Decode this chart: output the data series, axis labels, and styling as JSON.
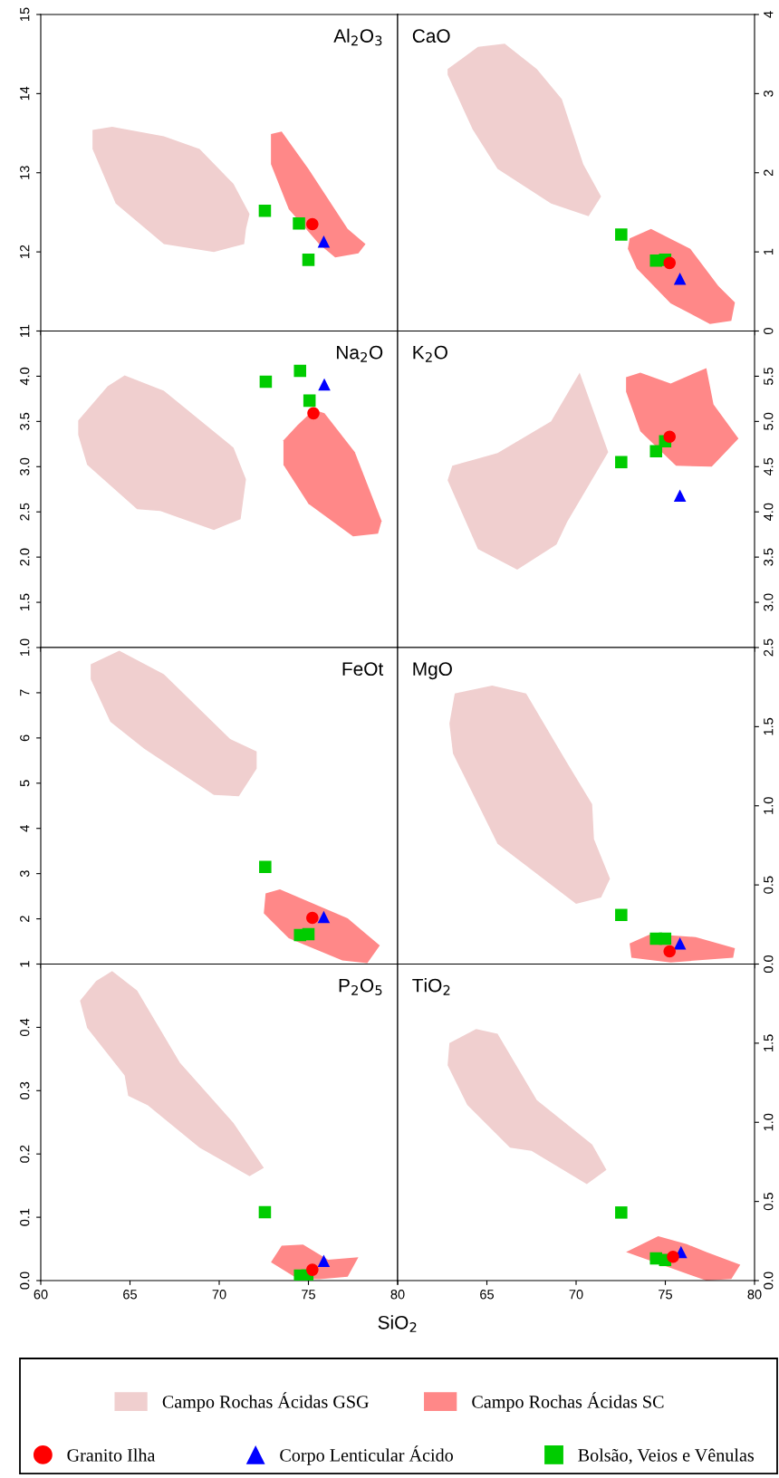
{
  "chart_data": [
    {
      "type": "scatter",
      "title": "Al$_{2}$O$_{3}$",
      "xlim": [
        60,
        80
      ],
      "xticks": [
        60,
        65,
        70,
        75,
        80
      ],
      "ylim": [
        11,
        15
      ],
      "yticks": [
        11,
        12,
        13,
        14,
        15
      ],
      "tick_labels": "y",
      "grid": false,
      "legend": "bottom",
      "series": [
        {
          "name": "Campo Rochas Ácidas GSG",
          "type": "area",
          "color": "#f0cfcf",
          "x": [
            62.9,
            64.0,
            66.9,
            68.9,
            70.8,
            71.7,
            71.5,
            71.4,
            69.7,
            66.9,
            64.2,
            62.9
          ],
          "values": [
            13.54,
            13.58,
            13.46,
            13.3,
            12.86,
            12.48,
            12.29,
            12.1,
            12.0,
            12.1,
            12.61,
            13.3
          ]
        },
        {
          "name": "Campo Rochas Ácidas SC",
          "type": "area",
          "color": "#ff8888",
          "x": [
            72.9,
            73.5,
            75.0,
            77.2,
            78.2,
            77.8,
            76.5,
            75.6,
            73.9,
            72.9
          ],
          "values": [
            13.49,
            13.52,
            13.05,
            12.29,
            12.1,
            11.98,
            11.93,
            12.1,
            12.54,
            13.11
          ]
        },
        {
          "name": "Granito Ilha",
          "marker": "circle",
          "color": "#ff0000",
          "x": [
            75.22
          ],
          "values": [
            12.35
          ]
        },
        {
          "name": "Corpo Lenticular Ácido",
          "marker": "triangle",
          "color": "#0000ff",
          "x": [
            75.86
          ],
          "values": [
            12.13
          ]
        },
        {
          "name": "Bolsão, Veios e Vênulas",
          "marker": "square",
          "color": "#00cc00",
          "x": [
            72.56,
            74.47,
            75.0
          ],
          "values": [
            12.52,
            12.36,
            11.9
          ]
        }
      ]
    },
    {
      "type": "scatter",
      "title": "CaO",
      "xlim": [
        60,
        80
      ],
      "xticks": [
        60,
        65,
        70,
        75,
        80
      ],
      "ylim": [
        0,
        4
      ],
      "yticks": [
        0,
        1,
        2,
        3,
        4
      ],
      "tick_labels": "y",
      "grid": false,
      "series": [
        {
          "type": "area",
          "color": "#f0cfcf",
          "x": [
            62.8,
            64.5,
            66.0,
            67.8,
            69.2,
            70.4,
            71.4,
            70.7,
            68.6,
            65.6,
            64.2,
            62.8
          ],
          "values": [
            3.31,
            3.59,
            3.63,
            3.31,
            2.93,
            2.11,
            1.7,
            1.45,
            1.61,
            2.05,
            2.55,
            3.24
          ]
        },
        {
          "type": "area",
          "color": "#ff8888",
          "x": [
            73.0,
            74.2,
            76.4,
            77.97,
            78.9,
            78.7,
            77.5,
            75.3,
            73.4,
            72.9
          ],
          "values": [
            1.17,
            1.29,
            1.04,
            0.57,
            0.36,
            0.13,
            0.09,
            0.35,
            0.79,
            1.04
          ]
        },
        {
          "marker": "circle",
          "color": "#ff0000",
          "x": [
            75.24
          ],
          "values": [
            0.86
          ]
        },
        {
          "marker": "triangle",
          "color": "#0000ff",
          "x": [
            75.82
          ],
          "values": [
            0.66
          ]
        },
        {
          "marker": "square",
          "color": "#00cc00",
          "x": [
            72.53,
            74.48,
            74.99
          ],
          "values": [
            1.22,
            0.89,
            0.9
          ]
        }
      ]
    },
    {
      "type": "scatter",
      "title": "Na$_{2}$O",
      "xlim": [
        60,
        80
      ],
      "xticks": [
        60,
        65,
        70,
        75,
        80
      ],
      "ylim": [
        1.0,
        4.5
      ],
      "yticks": [
        {
          "value": 1.0,
          "label": "1.0"
        },
        {
          "value": 1.5,
          "label": "1.5"
        },
        {
          "value": 2.0,
          "label": "2.0"
        },
        {
          "value": 2.5,
          "label": "2.5"
        },
        {
          "value": 3.0,
          "label": "3.0"
        },
        {
          "value": 3.5,
          "label": "3.5"
        },
        {
          "value": 4.0,
          "label": "4.0"
        }
      ],
      "tick_labels": "y",
      "grid": false,
      "series": [
        {
          "type": "area",
          "color": "#f0cfcf",
          "x": [
            62.1,
            63.75,
            64.7,
            66.9,
            70.8,
            71.5,
            71.2,
            69.7,
            66.7,
            65.4,
            62.6,
            62.1
          ],
          "values": [
            3.51,
            3.89,
            4.01,
            3.84,
            3.21,
            2.86,
            2.42,
            2.3,
            2.51,
            2.53,
            3.02,
            3.35
          ]
        },
        {
          "type": "area",
          "color": "#ff8888",
          "x": [
            73.6,
            74.4,
            75.3,
            75.9,
            77.6,
            79.1,
            78.9,
            77.5,
            75.0,
            73.6
          ],
          "values": [
            3.29,
            3.46,
            3.63,
            3.59,
            3.16,
            2.4,
            2.26,
            2.23,
            2.59,
            3.02
          ]
        },
        {
          "marker": "circle",
          "color": "#ff0000",
          "x": [
            75.28
          ],
          "values": [
            3.59
          ]
        },
        {
          "marker": "triangle",
          "color": "#0000ff",
          "x": [
            75.89
          ],
          "values": [
            3.91
          ]
        },
        {
          "marker": "square",
          "color": "#00cc00",
          "x": [
            72.61,
            74.53,
            75.06
          ],
          "values": [
            3.94,
            4.06,
            3.73
          ]
        }
      ]
    },
    {
      "type": "scatter",
      "title": "K$_{2}$O",
      "xlim": [
        60,
        80
      ],
      "xticks": [
        60,
        65,
        70,
        75,
        80
      ],
      "ylim": [
        2.5,
        6.0
      ],
      "yticks": [
        {
          "value": 2.5,
          "label": "2.5"
        },
        {
          "value": 3.0,
          "label": "3.0"
        },
        {
          "value": 3.5,
          "label": "3.5"
        },
        {
          "value": 4.0,
          "label": "4.0"
        },
        {
          "value": 4.5,
          "label": "4.5"
        },
        {
          "value": 5.0,
          "label": "5.0"
        },
        {
          "value": 5.5,
          "label": "5.5"
        }
      ],
      "tick_labels": "y",
      "grid": false,
      "series": [
        {
          "type": "area",
          "color": "#f0cfcf",
          "x": [
            63.06,
            65.6,
            68.6,
            70.2,
            71.8,
            69.5,
            68.9,
            66.7,
            64.5,
            62.8
          ],
          "values": [
            4.51,
            4.65,
            5.0,
            5.54,
            4.66,
            3.89,
            3.64,
            3.36,
            3.59,
            4.35
          ]
        },
        {
          "type": "area",
          "color": "#ff8888",
          "x": [
            72.8,
            73.6,
            75.3,
            77.3,
            77.7,
            79.1,
            77.6,
            75.6,
            73.6,
            72.8
          ],
          "values": [
            5.49,
            5.54,
            5.42,
            5.59,
            5.19,
            4.81,
            4.5,
            4.51,
            4.89,
            5.33
          ]
        },
        {
          "marker": "circle",
          "color": "#ff0000",
          "x": [
            75.24
          ],
          "values": [
            4.83
          ]
        },
        {
          "marker": "triangle",
          "color": "#0000ff",
          "x": [
            75.82
          ],
          "values": [
            4.18
          ]
        },
        {
          "marker": "square",
          "color": "#00cc00",
          "x": [
            72.53,
            74.48,
            74.99
          ],
          "values": [
            4.55,
            4.67,
            4.78
          ]
        }
      ]
    },
    {
      "type": "scatter",
      "title": "FeOt",
      "xlim": [
        60,
        80
      ],
      "xticks": [
        60,
        65,
        70,
        75,
        80
      ],
      "ylim": [
        1,
        8
      ],
      "yticks": [
        1,
        2,
        3,
        4,
        5,
        6,
        7
      ],
      "tick_labels": "y",
      "grid": false,
      "series": [
        {
          "type": "area",
          "color": "#f0cfcf",
          "x": [
            62.8,
            64.4,
            66.9,
            70.6,
            72.1,
            72.1,
            71.1,
            69.7,
            65.8,
            63.9,
            62.8
          ],
          "values": [
            7.63,
            7.93,
            7.41,
            5.98,
            5.7,
            5.32,
            4.71,
            4.74,
            5.76,
            6.36,
            7.3
          ]
        },
        {
          "type": "area",
          "color": "#ff8888",
          "x": [
            72.6,
            73.4,
            77.2,
            79.0,
            78.3,
            76.9,
            73.9,
            72.5
          ],
          "values": [
            2.56,
            2.65,
            2.01,
            1.41,
            1.02,
            1.08,
            1.57,
            2.12
          ]
        },
        {
          "marker": "circle",
          "color": "#ff0000",
          "x": [
            75.22
          ],
          "values": [
            2.02
          ]
        },
        {
          "marker": "triangle",
          "color": "#0000ff",
          "x": [
            75.86
          ],
          "values": [
            2.04
          ]
        },
        {
          "marker": "square",
          "color": "#00cc00",
          "x": [
            72.58,
            74.53,
            75.0
          ],
          "values": [
            3.15,
            1.64,
            1.66
          ]
        }
      ]
    },
    {
      "type": "scatter",
      "title": "MgO",
      "xlim": [
        60,
        80
      ],
      "xticks": [
        60,
        65,
        70,
        75,
        80
      ],
      "ylim": [
        0,
        2
      ],
      "yticks": [
        {
          "value": 0,
          "label": "0.0"
        },
        {
          "value": 0.5,
          "label": "0.5"
        },
        {
          "value": 1.0,
          "label": "1.0"
        },
        {
          "value": 1.5,
          "label": "1.5"
        }
      ],
      "tick_labels": "y",
      "grid": false,
      "series": [
        {
          "type": "area",
          "color": "#f0cfcf",
          "x": [
            63.2,
            65.3,
            67.2,
            69.5,
            70.9,
            71.0,
            71.9,
            71.4,
            70.0,
            65.6,
            63.1,
            62.9
          ],
          "values": [
            1.71,
            1.76,
            1.71,
            1.27,
            1.01,
            0.79,
            0.54,
            0.42,
            0.38,
            0.76,
            1.33,
            1.52
          ]
        },
        {
          "type": "area",
          "color": "#ff8888",
          "x": [
            73.0,
            74.2,
            76.7,
            78.9,
            78.8,
            75.3,
            73.1
          ],
          "values": [
            0.13,
            0.19,
            0.17,
            0.1,
            0.04,
            0.01,
            0.04
          ]
        },
        {
          "marker": "circle",
          "color": "#ff0000",
          "x": [
            75.24
          ],
          "values": [
            0.08
          ]
        },
        {
          "marker": "triangle",
          "color": "#0000ff",
          "x": [
            75.82
          ],
          "values": [
            0.13
          ]
        },
        {
          "marker": "square",
          "color": "#00cc00",
          "x": [
            72.53,
            74.48,
            74.99
          ],
          "values": [
            0.31,
            0.16,
            0.16
          ]
        }
      ]
    },
    {
      "type": "scatter",
      "title": "P$_{2}$O$_{5}$",
      "xlim": [
        60,
        80
      ],
      "xticks": [
        60,
        65,
        70,
        75,
        80
      ],
      "ylim": [
        0,
        0.5
      ],
      "yticks": [
        {
          "value": 0,
          "label": "0.0"
        },
        {
          "value": 0.1,
          "label": "0.1"
        },
        {
          "value": 0.2,
          "label": "0.2"
        },
        {
          "value": 0.3,
          "label": "0.3"
        },
        {
          "value": 0.4,
          "label": "0.4"
        }
      ],
      "grid": false,
      "series": [
        {
          "type": "area",
          "color": "#f0cfcf",
          "x": [
            62.2,
            63.1,
            64.0,
            65.4,
            67.8,
            70.8,
            72.5,
            71.7,
            68.9,
            66.0,
            64.9,
            64.7,
            62.6
          ],
          "values": [
            0.442,
            0.473,
            0.489,
            0.458,
            0.344,
            0.249,
            0.178,
            0.165,
            0.21,
            0.277,
            0.292,
            0.324,
            0.399
          ]
        },
        {
          "type": "area",
          "color": "#ff8888",
          "x": [
            72.9,
            73.5,
            74.7,
            76.1,
            77.8,
            77.2,
            75.6,
            74.4
          ],
          "values": [
            0.029,
            0.055,
            0.057,
            0.033,
            0.037,
            0.006,
            0.002,
            0.003
          ]
        },
        {
          "marker": "circle",
          "color": "#ff0000",
          "x": [
            75.22
          ],
          "values": [
            0.017
          ]
        },
        {
          "marker": "triangle",
          "color": "#0000ff",
          "x": [
            75.86
          ],
          "values": [
            0.031
          ]
        },
        {
          "marker": "square",
          "color": "#00cc00",
          "x": [
            72.56,
            74.53,
            74.94
          ],
          "values": [
            0.108,
            0.008,
            0.008
          ]
        }
      ]
    },
    {
      "type": "scatter",
      "title": "TiO$_{2}$",
      "xlabel": "SiO$_{2}$",
      "xlim": [
        60,
        80
      ],
      "xticks": [
        {
          "value": 60,
          "label": null
        },
        65,
        70,
        75,
        80
      ],
      "ylim": [
        0,
        2
      ],
      "yticks": [
        {
          "value": 0,
          "label": "0.0"
        },
        {
          "value": 0.5,
          "label": "0.5"
        },
        {
          "value": 1.0,
          "label": "1.0"
        },
        {
          "value": 1.5,
          "label": "1.5"
        }
      ],
      "grid": false,
      "series": [
        {
          "type": "area",
          "color": "#f0cfcf",
          "x": [
            62.9,
            64.4,
            65.6,
            67.8,
            70.9,
            71.7,
            70.6,
            67.5,
            66.3,
            63.9,
            62.8
          ],
          "values": [
            1.5,
            1.59,
            1.56,
            1.14,
            0.86,
            0.7,
            0.61,
            0.82,
            0.84,
            1.11,
            1.36
          ]
        },
        {
          "type": "area",
          "color": "#ff8888",
          "x": [
            72.8,
            74.6,
            76.2,
            77.3,
            79.2,
            78.7,
            77.3,
            74.8
          ],
          "values": [
            0.18,
            0.28,
            0.23,
            0.18,
            0.1,
            0.01,
            0.0,
            0.1
          ]
        },
        {
          "marker": "circle",
          "color": "#ff0000",
          "x": [
            75.43
          ],
          "values": [
            0.15
          ]
        },
        {
          "marker": "triangle",
          "color": "#0000ff",
          "x": [
            75.88
          ],
          "values": [
            0.18
          ]
        },
        {
          "marker": "square",
          "color": "#00cc00",
          "x": [
            72.53,
            74.48,
            74.99
          ],
          "values": [
            0.43,
            0.14,
            0.13
          ]
        }
      ]
    }
  ]
}
